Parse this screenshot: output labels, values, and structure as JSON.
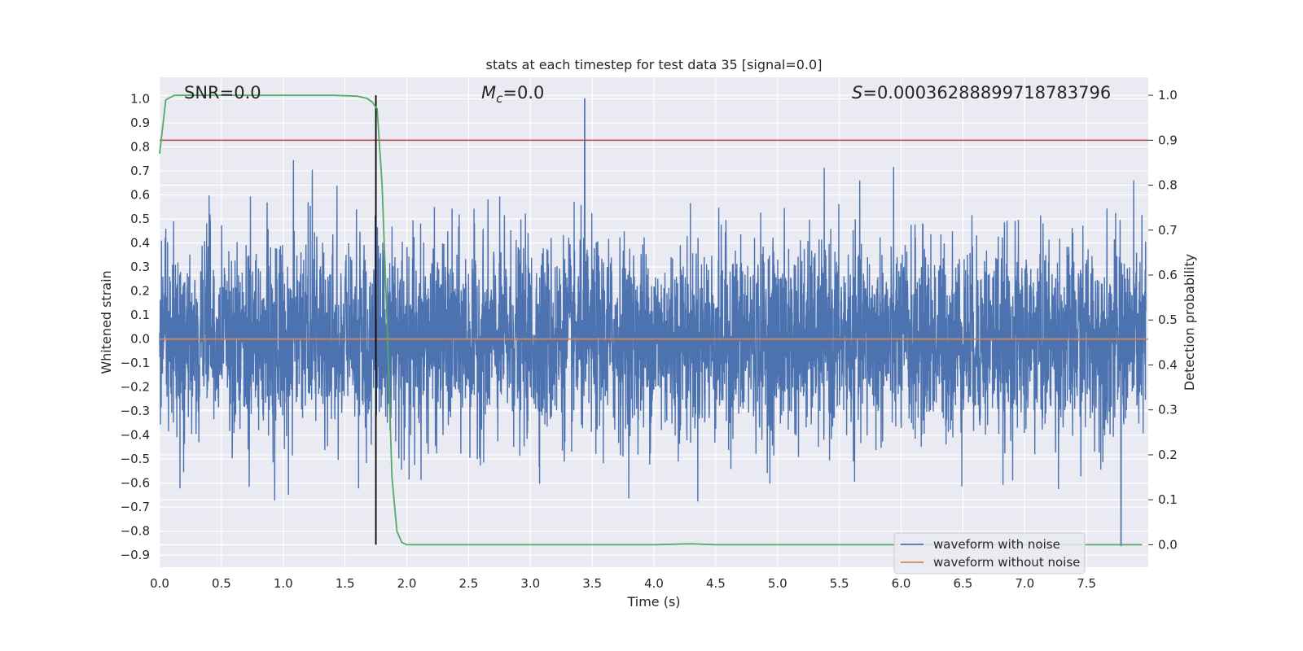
{
  "chart_data": {
    "type": "line",
    "title": "stats at each timestep for test data 35 [signal=0.0]",
    "xlabel": "Time (s)",
    "ylabel": "Whitened strain",
    "y2label": "Detection probability",
    "xlim": [
      0.0,
      8.0
    ],
    "ylim": [
      -0.95,
      1.09
    ],
    "y2lim": [
      -0.05,
      1.04
    ],
    "xticks": [
      "0.0",
      "0.5",
      "1.0",
      "1.5",
      "2.0",
      "2.5",
      "3.0",
      "3.5",
      "4.0",
      "4.5",
      "5.0",
      "5.5",
      "6.0",
      "6.5",
      "7.0",
      "7.5"
    ],
    "yticks": [
      "1.0",
      "0.9",
      "0.8",
      "0.7",
      "0.6",
      "0.5",
      "0.4",
      "0.3",
      "0.2",
      "0.1",
      "0.0",
      "-0.1",
      "-0.2",
      "-0.3",
      "-0.4",
      "-0.5",
      "-0.6",
      "-0.7",
      "-0.8",
      "-0.9"
    ],
    "y2ticks": [
      "1.0",
      "0.9",
      "0.8",
      "0.7",
      "0.6",
      "0.5",
      "0.4",
      "0.3",
      "0.2",
      "0.1",
      "0.0"
    ],
    "annotations": {
      "snr": "SNR=0.0",
      "mc": "=0.0",
      "mc_symbol": "M",
      "mc_subscript": "c",
      "s": "=0.00036288899718783796",
      "s_symbol": "S"
    },
    "detection_threshold": 0.9,
    "detection_time": 1.75,
    "series": [
      {
        "name": "waveform with noise",
        "color": "#4c72b0",
        "description": "noise trace, approx range -0.86 to 1.0",
        "noise_amplitude": 0.2,
        "noise_max": 1.0,
        "noise_min": -0.86
      },
      {
        "name": "waveform without noise",
        "color": "#dd8452",
        "x": [
          0.0,
          8.0
        ],
        "y": [
          0.0,
          0.0
        ]
      },
      {
        "name": "detection probability",
        "color": "#55a868",
        "axis": "right",
        "x": [
          0.0,
          0.05,
          0.12,
          0.3,
          0.6,
          1.0,
          1.4,
          1.6,
          1.68,
          1.72,
          1.76,
          1.8,
          1.84,
          1.88,
          1.92,
          1.96,
          2.0,
          2.5,
          3.0,
          3.5,
          4.0,
          4.3,
          4.5,
          5.0,
          6.0,
          7.0,
          7.95
        ],
        "y": [
          0.87,
          0.99,
          1.0,
          1.0,
          1.0,
          1.0,
          1.0,
          0.998,
          0.993,
          0.985,
          0.97,
          0.8,
          0.5,
          0.15,
          0.03,
          0.005,
          0.0,
          0.0,
          0.0,
          0.0,
          0.0,
          0.002,
          0.0,
          0.0,
          0.0,
          0.0,
          0.0
        ]
      }
    ],
    "threshold_color": "#c44e52",
    "detection_line_color": "#000000",
    "legend": {
      "placement": "bottom-right",
      "entries": [
        "waveform with noise",
        "waveform without noise"
      ]
    }
  }
}
